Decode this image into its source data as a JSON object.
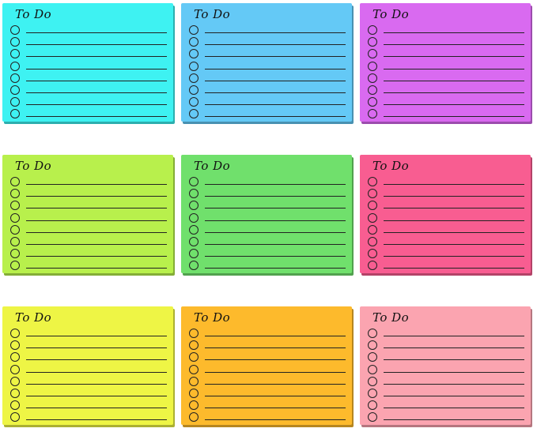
{
  "notes": [
    {
      "title": "To Do",
      "color": "#3ef2f2"
    },
    {
      "title": "To Do",
      "color": "#64c9f6"
    },
    {
      "title": "To Do",
      "color": "#d96af0"
    },
    {
      "title": "To Do",
      "color": "#b8f04c"
    },
    {
      "title": "To Do",
      "color": "#70e06c"
    },
    {
      "title": "To Do",
      "color": "#f85d91"
    },
    {
      "title": "To Do",
      "color": "#eef545"
    },
    {
      "title": "To Do",
      "color": "#fdba2c"
    },
    {
      "title": "To Do",
      "color": "#fba4b0"
    }
  ],
  "checklist_rows_per_note": 8
}
